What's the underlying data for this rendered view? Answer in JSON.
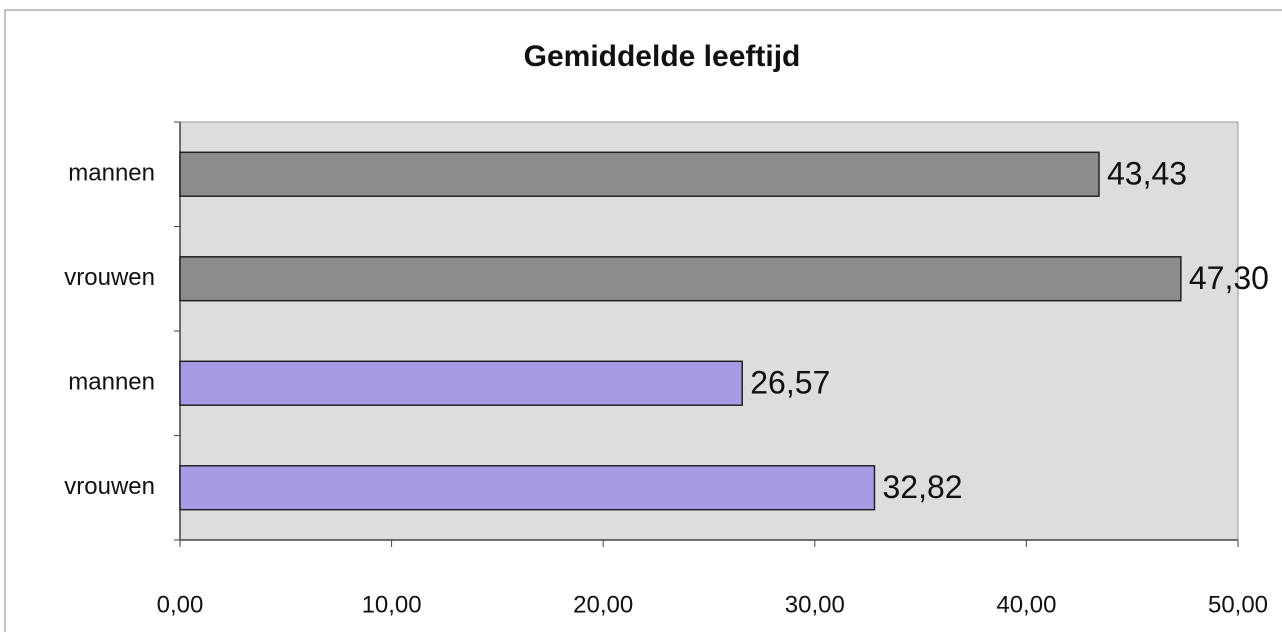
{
  "chart_data": {
    "type": "barh",
    "title": "Gemiddelde leeftijd",
    "categories": [
      "mannen",
      "vrouwen",
      "mannen",
      "vrouwen"
    ],
    "values": [
      43.43,
      47.3,
      26.57,
      32.82
    ],
    "value_labels": [
      "43,43",
      "47,30",
      "26,57",
      "32,82"
    ],
    "colors": [
      "#8c8c8c",
      "#8c8c8c",
      "#a99ae6",
      "#a99ae6"
    ],
    "xlim": [
      0,
      50
    ],
    "xticks": [
      {
        "value": 0,
        "label": "0,00"
      },
      {
        "value": 10,
        "label": "10,00"
      },
      {
        "value": 20,
        "label": "20,00"
      },
      {
        "value": 30,
        "label": "30,00"
      },
      {
        "value": 40,
        "label": "40,00"
      },
      {
        "value": 50,
        "label": "50,00"
      }
    ],
    "grid": false
  }
}
